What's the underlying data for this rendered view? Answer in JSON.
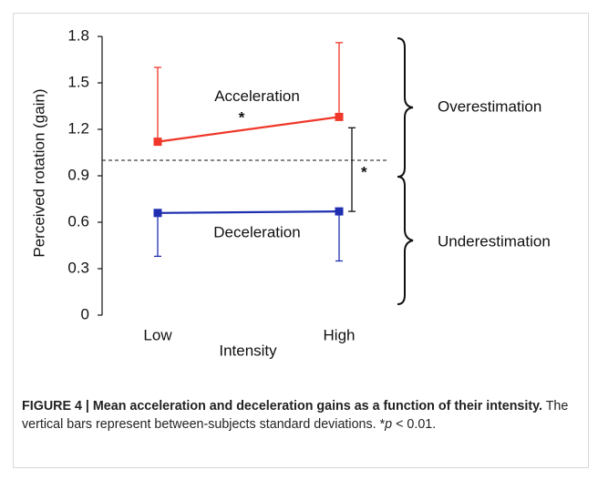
{
  "chart_data": {
    "type": "line",
    "y_label": "Perceived rotation (gain)",
    "x_label": "Intensity",
    "categories": [
      "Low",
      "High"
    ],
    "series": [
      {
        "name": "Acceleration",
        "color": "#f0372a",
        "values": [
          1.12,
          1.28
        ],
        "errors": [
          0.48,
          0.48
        ],
        "error_direction": "up"
      },
      {
        "name": "Deceleration",
        "color": "#1f2fb0",
        "values": [
          0.66,
          0.67
        ],
        "errors": [
          0.28,
          0.32
        ],
        "error_direction": "down"
      }
    ],
    "ylim": [
      0,
      1.8
    ],
    "yticks": [
      0,
      0.3,
      0.6,
      0.9,
      1.2,
      1.5,
      1.8
    ],
    "reference_line": 1.0,
    "trend_annotation": "*",
    "bracket": {
      "range": [
        0.67,
        1.21
      ],
      "label": "*"
    },
    "regions": [
      "Overestimation",
      "Underestimation"
    ]
  },
  "caption": {
    "title": "FIGURE 4 | Mean acceleration and deceleration gains as a function of their intensity.",
    "text": " The vertical bars represent between-subjects standard deviations. *",
    "italic": "p",
    "tail": " < 0.01."
  }
}
